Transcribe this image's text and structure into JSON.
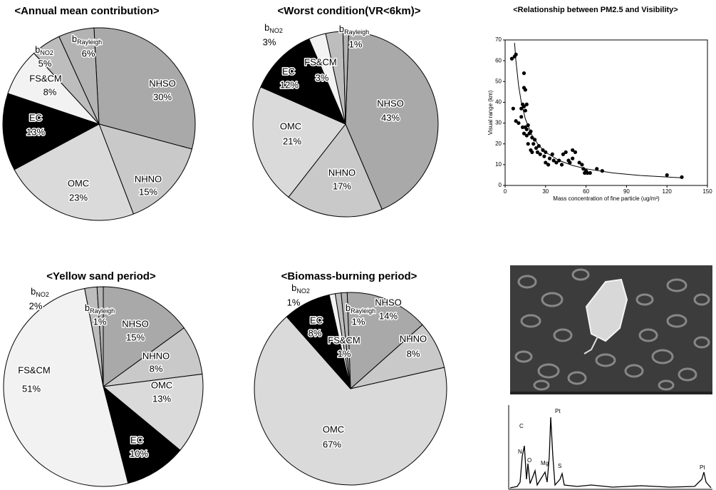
{
  "chart_data": [
    {
      "type": "pie",
      "title": "<Annual mean contribution>",
      "categories": [
        "NHSO",
        "NHNO",
        "OMC",
        "EC",
        "FS&CM",
        "bNO2",
        "bRayleigh"
      ],
      "values": [
        30,
        15,
        23,
        13,
        8,
        5,
        6
      ],
      "value_labels": [
        "30%",
        "15%",
        "23%",
        "13%",
        "8%",
        "5%",
        "6%"
      ],
      "colors": [
        "#a9a9a9",
        "#c9c9c9",
        "#dadada",
        "#000000",
        "#f2f2f2",
        "#bdbdbd",
        "#b3b3b3"
      ]
    },
    {
      "type": "pie",
      "title": "<Worst condition(VR<6km)>",
      "categories": [
        "NHSO",
        "NHNO",
        "OMC",
        "EC",
        "FS&CM",
        "bNO2",
        "bRayleigh"
      ],
      "values": [
        43,
        17,
        21,
        12,
        3,
        3,
        1
      ],
      "value_labels": [
        "43%",
        "17%",
        "21%",
        "12%",
        "3%",
        "3%",
        "1%"
      ],
      "colors": [
        "#a9a9a9",
        "#c9c9c9",
        "#dadada",
        "#000000",
        "#f2f2f2",
        "#bdbdbd",
        "#b3b3b3"
      ]
    },
    {
      "type": "pie",
      "title": "<Yellow sand period>",
      "categories": [
        "NHSO",
        "NHNO",
        "OMC",
        "EC",
        "FS&CM",
        "bNO2",
        "bRayleigh"
      ],
      "values": [
        15,
        8,
        13,
        10,
        51,
        2,
        1
      ],
      "value_labels": [
        "15%",
        "8%",
        "13%",
        "10%",
        "51%",
        "2%",
        "1%"
      ],
      "colors": [
        "#a9a9a9",
        "#c9c9c9",
        "#dadada",
        "#000000",
        "#f2f2f2",
        "#bdbdbd",
        "#b3b3b3"
      ]
    },
    {
      "type": "pie",
      "title": "<Biomass-burning period>",
      "categories": [
        "NHSO",
        "NHNO",
        "OMC",
        "EC",
        "FS&CM",
        "bNO2",
        "bRayleigh"
      ],
      "values": [
        14,
        8,
        67,
        8,
        1,
        1,
        1
      ],
      "value_labels": [
        "14%",
        "8%",
        "67%",
        "8%",
        "1%",
        "1%",
        "1%"
      ],
      "colors": [
        "#a9a9a9",
        "#c9c9c9",
        "#dadada",
        "#000000",
        "#f2f2f2",
        "#bdbdbd",
        "#b3b3b3"
      ]
    },
    {
      "type": "scatter",
      "title": "<Relationship between PM2.5 and Visibility>",
      "x_label": "Mass concentration of fine particle (ug/m³)",
      "y_label": "Visual range (km)",
      "x": [
        5,
        7,
        8,
        6,
        8,
        10,
        12,
        12,
        13,
        14,
        14,
        15,
        14,
        15,
        16,
        13,
        15,
        16,
        17,
        14,
        16,
        18,
        19,
        20,
        17,
        19,
        20,
        21,
        22,
        23,
        25,
        24,
        26,
        28,
        30,
        29,
        30,
        32,
        33,
        35,
        36,
        38,
        40,
        42,
        43,
        45,
        47,
        48,
        50,
        50,
        52,
        55,
        57,
        58,
        60,
        61,
        59,
        63,
        68,
        72,
        120,
        131
      ],
      "values": [
        61,
        62,
        63,
        37,
        31,
        30,
        33,
        37,
        39,
        54,
        47,
        46,
        38,
        36,
        39,
        28,
        28,
        27,
        29,
        25,
        24,
        25,
        26,
        23,
        20,
        17,
        16,
        20,
        22,
        18,
        19,
        16,
        15,
        17,
        16,
        14,
        11,
        10,
        13,
        15,
        12,
        11,
        12,
        10,
        15,
        16,
        12,
        11,
        13,
        17,
        16,
        11,
        10,
        8,
        7,
        6,
        6,
        6,
        8,
        7,
        5,
        4
      ],
      "color": "#000000",
      "fit": {
        "x": [
          7,
          8,
          10,
          12,
          15,
          20,
          25,
          30,
          40,
          50,
          60,
          80,
          100,
          130
        ],
        "values": [
          68.6,
          60,
          48,
          40,
          32,
          24,
          19.2,
          16,
          12,
          9.6,
          8,
          6,
          4.8,
          3.7
        ]
      },
      "xlim": [
        0,
        150
      ],
      "ylim": [
        0,
        70
      ],
      "xticks": [
        0,
        30,
        60,
        90,
        120,
        150
      ],
      "yticks": [
        0,
        10,
        20,
        30,
        40,
        50,
        60,
        70
      ]
    }
  ],
  "edx_spectrum": {
    "peak_labels": [
      "C",
      "N",
      "O",
      "Mg",
      "S",
      "Pt",
      "Pt"
    ]
  }
}
